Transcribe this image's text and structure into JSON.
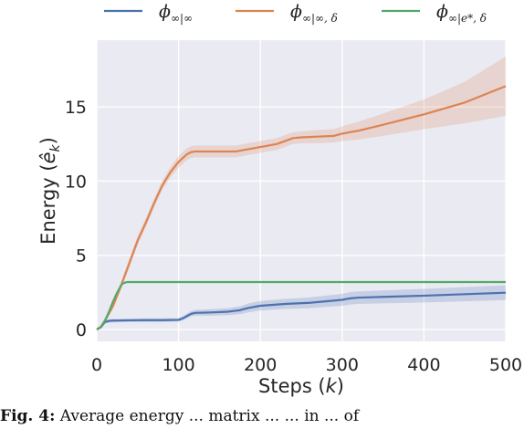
{
  "chart_data": {
    "type": "line",
    "xlabel": "Steps (k)",
    "ylabel": "Energy (ê_k)",
    "xlim": [
      0,
      500
    ],
    "ylim": [
      -0.8,
      19.5
    ],
    "xticks": [
      0,
      100,
      200,
      300,
      400,
      500
    ],
    "yticks": [
      0,
      5,
      10,
      15
    ],
    "grid": true,
    "background": "#eaeaf2",
    "legend_position": "top",
    "series": [
      {
        "name": "ϕ∞|∞",
        "color": "#4c72b0",
        "x": [
          0,
          5,
          10,
          15,
          20,
          40,
          60,
          80,
          90,
          100,
          105,
          110,
          115,
          120,
          140,
          160,
          175,
          185,
          200,
          230,
          260,
          280,
          300,
          310,
          320,
          350,
          400,
          450,
          500
        ],
        "y": [
          0.0,
          0.15,
          0.5,
          0.58,
          0.6,
          0.62,
          0.63,
          0.63,
          0.64,
          0.65,
          0.75,
          0.9,
          1.05,
          1.12,
          1.15,
          1.2,
          1.3,
          1.45,
          1.6,
          1.72,
          1.8,
          1.9,
          2.0,
          2.1,
          2.15,
          2.2,
          2.28,
          2.38,
          2.48
        ],
        "band": [
          0.0,
          0.05,
          0.1,
          0.12,
          0.12,
          0.12,
          0.12,
          0.12,
          0.12,
          0.12,
          0.14,
          0.16,
          0.18,
          0.2,
          0.22,
          0.24,
          0.26,
          0.3,
          0.32,
          0.34,
          0.36,
          0.38,
          0.4,
          0.42,
          0.42,
          0.44,
          0.46,
          0.48,
          0.5
        ]
      },
      {
        "name": "ϕ∞|∞,δ",
        "color": "#dd8452",
        "x": [
          0,
          5,
          10,
          20,
          30,
          40,
          50,
          60,
          70,
          80,
          90,
          100,
          110,
          115,
          120,
          130,
          150,
          170,
          180,
          200,
          220,
          240,
          250,
          270,
          290,
          300,
          320,
          350,
          400,
          450,
          500
        ],
        "y": [
          0.0,
          0.2,
          0.6,
          1.6,
          3.0,
          4.5,
          6.0,
          7.2,
          8.5,
          9.7,
          10.6,
          11.3,
          11.8,
          11.95,
          12.0,
          12.0,
          12.0,
          12.0,
          12.1,
          12.3,
          12.5,
          12.9,
          12.95,
          13.0,
          13.05,
          13.2,
          13.4,
          13.8,
          14.5,
          15.3,
          16.4
        ],
        "band": [
          0.0,
          0.1,
          0.15,
          0.2,
          0.25,
          0.3,
          0.3,
          0.3,
          0.3,
          0.3,
          0.35,
          0.4,
          0.4,
          0.4,
          0.4,
          0.4,
          0.4,
          0.4,
          0.4,
          0.4,
          0.4,
          0.4,
          0.4,
          0.45,
          0.45,
          0.5,
          0.6,
          0.75,
          1.0,
          1.4,
          2.0
        ]
      },
      {
        "name": "ϕ∞|e*,δ",
        "color": "#55a868",
        "x": [
          0,
          5,
          10,
          15,
          20,
          25,
          30,
          32,
          35,
          38,
          40,
          50,
          100,
          200,
          300,
          400,
          500
        ],
        "y": [
          0.0,
          0.15,
          0.6,
          1.2,
          1.9,
          2.5,
          3.0,
          3.1,
          3.17,
          3.2,
          3.2,
          3.2,
          3.2,
          3.2,
          3.2,
          3.2,
          3.2
        ],
        "band": [
          0.0,
          0.05,
          0.1,
          0.1,
          0.1,
          0.08,
          0.05,
          0.04,
          0.03,
          0.02,
          0.02,
          0.02,
          0.02,
          0.02,
          0.02,
          0.02,
          0.02
        ]
      }
    ]
  },
  "legend": [
    {
      "base": "ϕ",
      "sub": "∞|∞",
      "color": "#4c72b0"
    },
    {
      "base": "ϕ",
      "sub": "∞|∞, δ",
      "color": "#dd8452"
    },
    {
      "base": "ϕ",
      "sub": "∞|e*, δ",
      "color": "#55a868"
    }
  ],
  "caption": {
    "bold": "Fig. 4:",
    "text": " Average energy ... matrix ... ... in ... of"
  }
}
